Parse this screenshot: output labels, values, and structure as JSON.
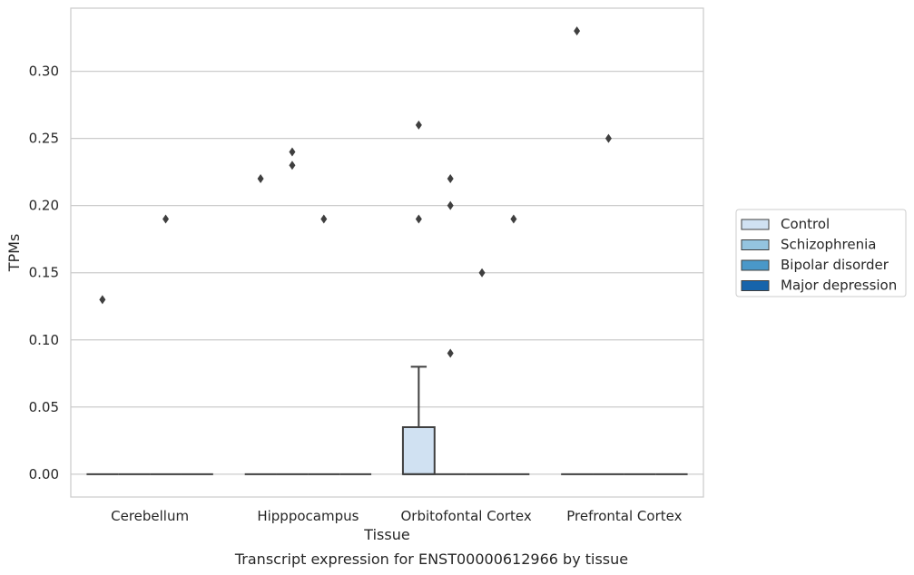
{
  "chart_data": {
    "type": "box",
    "title": "Transcript expression for ENST00000612966 by tissue",
    "xlabel": "Tissue",
    "ylabel": "TPMs",
    "ylim": [
      -0.017,
      0.347
    ],
    "yticks": [
      0.0,
      0.05,
      0.1,
      0.15,
      0.2,
      0.25,
      0.3
    ],
    "ytick_labels": [
      "0.00",
      "0.05",
      "0.10",
      "0.15",
      "0.20",
      "0.25",
      "0.30"
    ],
    "grid": true,
    "legend_position": "right",
    "categories": [
      "Cerebellum",
      "Hipppocampus",
      "Orbitofontal Cortex",
      "Prefrontal Cortex"
    ],
    "series": [
      {
        "name": "Control",
        "color": "#d0e1f2",
        "boxes": [
          {
            "q1": 0,
            "median": 0,
            "q3": 0,
            "whisker_low": 0,
            "whisker_high": 0,
            "outliers": [
              0.13
            ]
          },
          {
            "q1": 0,
            "median": 0,
            "q3": 0,
            "whisker_low": 0,
            "whisker_high": 0,
            "outliers": [
              0.22
            ]
          },
          {
            "q1": 0,
            "median": 0,
            "q3": 0.035,
            "whisker_low": 0,
            "whisker_high": 0.08,
            "outliers": [
              0.26,
              0.19
            ]
          },
          {
            "q1": 0,
            "median": 0,
            "q3": 0,
            "whisker_low": 0,
            "whisker_high": 0,
            "outliers": [
              0.33
            ]
          }
        ]
      },
      {
        "name": "Schizophrenia",
        "color": "#94c4df",
        "boxes": [
          {
            "q1": 0,
            "median": 0,
            "q3": 0,
            "whisker_low": 0,
            "whisker_high": 0,
            "outliers": []
          },
          {
            "q1": 0,
            "median": 0,
            "q3": 0,
            "whisker_low": 0,
            "whisker_high": 0,
            "outliers": [
              0.24,
              0.23
            ]
          },
          {
            "q1": 0,
            "median": 0,
            "q3": 0,
            "whisker_low": 0,
            "whisker_high": 0,
            "outliers": [
              0.22,
              0.2,
              0.09
            ]
          },
          {
            "q1": 0,
            "median": 0,
            "q3": 0,
            "whisker_low": 0,
            "whisker_high": 0,
            "outliers": [
              0.25
            ]
          }
        ]
      },
      {
        "name": "Bipolar disorder",
        "color": "#4a98c9",
        "boxes": [
          {
            "q1": 0,
            "median": 0,
            "q3": 0,
            "whisker_low": 0,
            "whisker_high": 0,
            "outliers": [
              0.19
            ]
          },
          {
            "q1": 0,
            "median": 0,
            "q3": 0,
            "whisker_low": 0,
            "whisker_high": 0,
            "outliers": [
              0.19
            ]
          },
          {
            "q1": 0,
            "median": 0,
            "q3": 0,
            "whisker_low": 0,
            "whisker_high": 0,
            "outliers": [
              0.15
            ]
          },
          {
            "q1": 0,
            "median": 0,
            "q3": 0,
            "whisker_low": 0,
            "whisker_high": 0,
            "outliers": []
          }
        ]
      },
      {
        "name": "Major depression",
        "color": "#1764ab",
        "boxes": [
          {
            "q1": 0,
            "median": 0,
            "q3": 0,
            "whisker_low": 0,
            "whisker_high": 0,
            "outliers": []
          },
          {
            "q1": 0,
            "median": 0,
            "q3": 0,
            "whisker_low": 0,
            "whisker_high": 0,
            "outliers": []
          },
          {
            "q1": 0,
            "median": 0,
            "q3": 0,
            "whisker_low": 0,
            "whisker_high": 0,
            "outliers": [
              0.19
            ]
          },
          {
            "q1": 0,
            "median": 0,
            "q3": 0,
            "whisker_low": 0,
            "whisker_high": 0,
            "outliers": []
          }
        ]
      }
    ]
  }
}
